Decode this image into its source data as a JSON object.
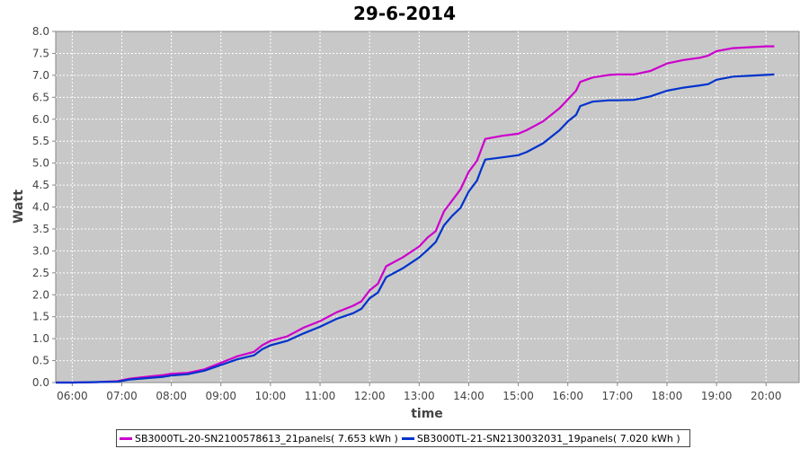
{
  "chart_data": {
    "type": "line",
    "title": "29-6-2014",
    "xlabel": "time",
    "ylabel": "Watt",
    "x_ticks": [
      "06:00",
      "07:00",
      "08:00",
      "09:00",
      "10:00",
      "11:00",
      "12:00",
      "13:00",
      "14:00",
      "15:00",
      "16:00",
      "17:00",
      "18:00",
      "19:00",
      "20:00"
    ],
    "y_ticks": [
      "0.0",
      "0.5",
      "1.0",
      "1.5",
      "2.0",
      "2.5",
      "3.0",
      "3.5",
      "4.0",
      "4.5",
      "5.0",
      "5.5",
      "6.0",
      "6.5",
      "7.0",
      "7.5",
      "8.0"
    ],
    "xlim": [
      "05:40",
      "20:40"
    ],
    "ylim": [
      0,
      8
    ],
    "grid": true,
    "legend_position": "bottom",
    "series": [
      {
        "name": "SB3000TL-20-SN2100578613_21panels( 7.653 kWh )",
        "color": "#cc00cc",
        "points": [
          [
            "05:40",
            0.0
          ],
          [
            "06:00",
            0.0
          ],
          [
            "06:30",
            0.01
          ],
          [
            "06:55",
            0.03
          ],
          [
            "07:10",
            0.09
          ],
          [
            "07:30",
            0.13
          ],
          [
            "07:50",
            0.17
          ],
          [
            "08:00",
            0.2
          ],
          [
            "08:20",
            0.22
          ],
          [
            "08:40",
            0.3
          ],
          [
            "09:00",
            0.45
          ],
          [
            "09:20",
            0.6
          ],
          [
            "09:40",
            0.7
          ],
          [
            "09:50",
            0.85
          ],
          [
            "10:00",
            0.95
          ],
          [
            "10:20",
            1.05
          ],
          [
            "10:40",
            1.25
          ],
          [
            "11:00",
            1.4
          ],
          [
            "11:20",
            1.6
          ],
          [
            "11:40",
            1.75
          ],
          [
            "11:50",
            1.85
          ],
          [
            "12:00",
            2.1
          ],
          [
            "12:10",
            2.25
          ],
          [
            "12:20",
            2.65
          ],
          [
            "12:40",
            2.85
          ],
          [
            "13:00",
            3.1
          ],
          [
            "13:10",
            3.3
          ],
          [
            "13:20",
            3.45
          ],
          [
            "13:30",
            3.9
          ],
          [
            "13:40",
            4.15
          ],
          [
            "13:50",
            4.4
          ],
          [
            "14:00",
            4.8
          ],
          [
            "14:10",
            5.05
          ],
          [
            "14:15",
            5.3
          ],
          [
            "14:20",
            5.55
          ],
          [
            "14:40",
            5.62
          ],
          [
            "15:00",
            5.67
          ],
          [
            "15:10",
            5.75
          ],
          [
            "15:30",
            5.95
          ],
          [
            "15:50",
            6.25
          ],
          [
            "16:00",
            6.45
          ],
          [
            "16:10",
            6.65
          ],
          [
            "16:15",
            6.85
          ],
          [
            "16:30",
            6.95
          ],
          [
            "16:50",
            7.01
          ],
          [
            "17:00",
            7.02
          ],
          [
            "17:20",
            7.02
          ],
          [
            "17:40",
            7.1
          ],
          [
            "18:00",
            7.27
          ],
          [
            "18:20",
            7.35
          ],
          [
            "18:40",
            7.4
          ],
          [
            "18:50",
            7.45
          ],
          [
            "19:00",
            7.55
          ],
          [
            "19:20",
            7.62
          ],
          [
            "19:40",
            7.64
          ],
          [
            "20:00",
            7.66
          ],
          [
            "20:10",
            7.66
          ]
        ]
      },
      {
        "name": "SB3000TL-21-SN2130032031_19panels( 7.020 kWh )",
        "color": "#0033cc",
        "points": [
          [
            "05:40",
            0.0
          ],
          [
            "06:00",
            0.0
          ],
          [
            "06:30",
            0.01
          ],
          [
            "06:55",
            0.02
          ],
          [
            "07:10",
            0.07
          ],
          [
            "07:30",
            0.1
          ],
          [
            "07:50",
            0.13
          ],
          [
            "08:00",
            0.16
          ],
          [
            "08:20",
            0.19
          ],
          [
            "08:40",
            0.27
          ],
          [
            "09:00",
            0.4
          ],
          [
            "09:20",
            0.53
          ],
          [
            "09:40",
            0.62
          ],
          [
            "09:50",
            0.76
          ],
          [
            "10:00",
            0.85
          ],
          [
            "10:20",
            0.95
          ],
          [
            "10:40",
            1.12
          ],
          [
            "11:00",
            1.27
          ],
          [
            "11:20",
            1.45
          ],
          [
            "11:40",
            1.58
          ],
          [
            "11:50",
            1.68
          ],
          [
            "12:00",
            1.92
          ],
          [
            "12:10",
            2.05
          ],
          [
            "12:20",
            2.4
          ],
          [
            "12:40",
            2.6
          ],
          [
            "13:00",
            2.85
          ],
          [
            "13:10",
            3.02
          ],
          [
            "13:20",
            3.2
          ],
          [
            "13:30",
            3.58
          ],
          [
            "13:40",
            3.8
          ],
          [
            "13:50",
            3.98
          ],
          [
            "14:00",
            4.35
          ],
          [
            "14:10",
            4.6
          ],
          [
            "14:15",
            4.85
          ],
          [
            "14:20",
            5.08
          ],
          [
            "14:40",
            5.13
          ],
          [
            "15:00",
            5.18
          ],
          [
            "15:10",
            5.25
          ],
          [
            "15:30",
            5.45
          ],
          [
            "15:50",
            5.75
          ],
          [
            "16:00",
            5.95
          ],
          [
            "16:10",
            6.1
          ],
          [
            "16:15",
            6.3
          ],
          [
            "16:30",
            6.4
          ],
          [
            "16:50",
            6.43
          ],
          [
            "17:00",
            6.43
          ],
          [
            "17:20",
            6.44
          ],
          [
            "17:40",
            6.52
          ],
          [
            "18:00",
            6.65
          ],
          [
            "18:20",
            6.72
          ],
          [
            "18:40",
            6.77
          ],
          [
            "18:50",
            6.8
          ],
          [
            "19:00",
            6.9
          ],
          [
            "19:20",
            6.97
          ],
          [
            "19:40",
            6.99
          ],
          [
            "20:00",
            7.01
          ],
          [
            "20:10",
            7.02
          ]
        ]
      }
    ]
  }
}
